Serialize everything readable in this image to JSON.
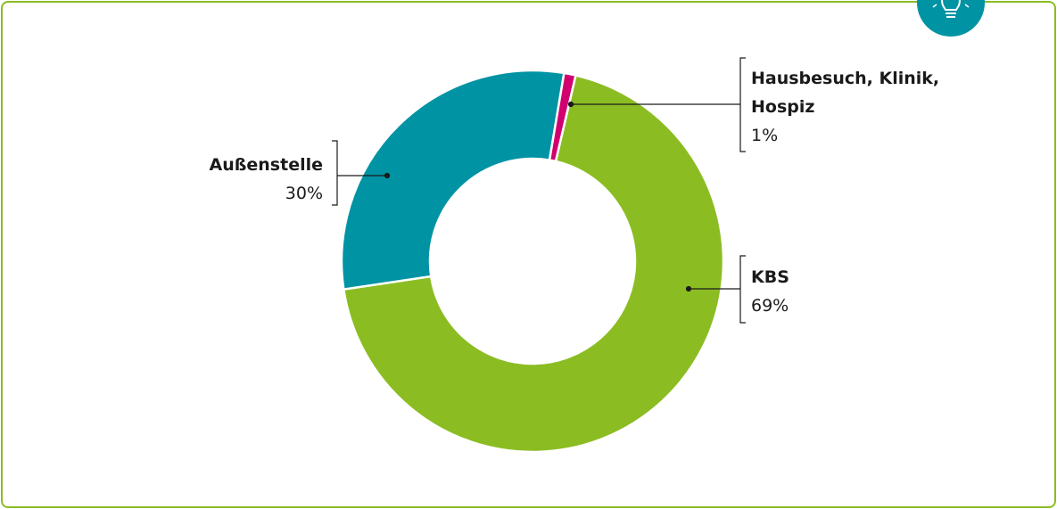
{
  "chart_data": {
    "type": "donut",
    "categories": [
      "Hausbesuch, Klinik, Hospiz",
      "KBS",
      "Außenstelle"
    ],
    "values": [
      1,
      69,
      30
    ],
    "value_labels": [
      "1%",
      "69%",
      "30%"
    ],
    "colors": [
      "#d1006f",
      "#8bbd23",
      "#0093a3"
    ]
  }
}
